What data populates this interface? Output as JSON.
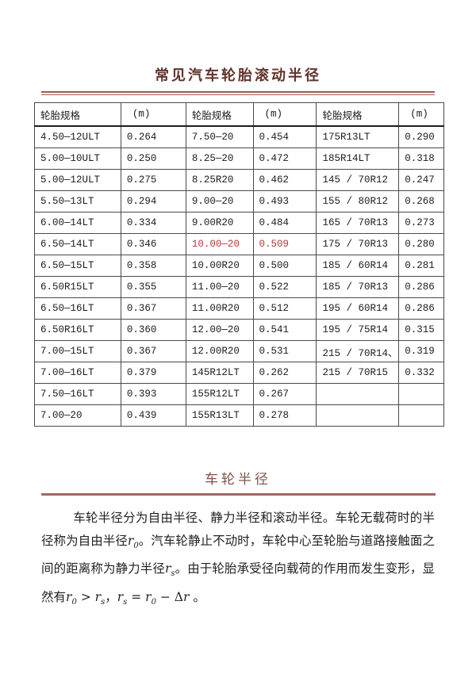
{
  "page": {
    "title": "常见汽车轮胎滚动半径",
    "section_heading": "车轮半径"
  },
  "colors": {
    "title": "#63322c",
    "heading": "#7d544d",
    "title_rule": "#a05a55",
    "section_rule": "#9c6a62",
    "highlight": "#b03a36"
  },
  "table": {
    "headers": [
      "轮胎规格",
      "(m)",
      "轮胎规格",
      "(m)",
      "轮胎规格",
      "(m)"
    ],
    "rows": [
      [
        "4.50—12ULT",
        "0.264",
        "7.50—20",
        "0.454",
        "175R13LT",
        "0.290"
      ],
      [
        "5.00—10ULT",
        "0.250",
        "8.25—20",
        "0.472",
        "185R14LT",
        "0.318"
      ],
      [
        "5.00—12ULT",
        "0.275",
        "8.25R20",
        "0.462",
        "145 / 70R12",
        "0.247"
      ],
      [
        "5.50—13LT",
        "0.294",
        "9.00—20",
        "0.493",
        "155 / 80R12",
        "0.268"
      ],
      [
        "6.00—14LT",
        "0.334",
        "9.00R20",
        "0.484",
        "165 / 70R13",
        "0.273"
      ],
      [
        "6.50—14LT",
        "0.346",
        "10.00—20",
        "0.509",
        "175 / 70R13",
        "0.280"
      ],
      [
        "6.50—15LT",
        "0.358",
        "10.00R20",
        "0.500",
        "185 / 60R14",
        "0.281"
      ],
      [
        "6.50R15LT",
        "0.355",
        "11.00—20",
        "0.522",
        "185 / 70R13",
        "0.286"
      ],
      [
        "6.50—16LT",
        "0.367",
        "11.00R20",
        "0.512",
        "195 / 60R14",
        "0.286"
      ],
      [
        "6.50R16LT",
        "0.360",
        "12.00—20",
        "0.541",
        "195 / 75R14",
        "0.315"
      ],
      [
        "7.00—15LT",
        "0.367",
        "12.00R20",
        "0.531",
        "215 / 70R14、",
        "0.319"
      ],
      [
        "7.00—16LT",
        "0.379",
        "145R12LT",
        "0.262",
        "215 / 70R15",
        "0.332"
      ],
      [
        "7.50—16LT",
        "0.393",
        "155R12LT",
        "0.267",
        "",
        ""
      ],
      [
        "7.00—20",
        "0.439",
        "155R13LT",
        "0.278",
        "",
        ""
      ]
    ],
    "highlight_cells": [
      [
        5,
        2
      ],
      [
        5,
        3
      ]
    ]
  },
  "paragraph": {
    "segments": [
      {
        "t": "text",
        "v": "车轮半径分为自由半径、静力半径和滚动半径。车轮无载荷时的半径称为自由半径"
      },
      {
        "t": "var",
        "base": "r",
        "sub": "0"
      },
      {
        "t": "text",
        "v": "。汽车轮静止不动时，车轮中心至轮胎与道路接触面之间的距离称为静力半径"
      },
      {
        "t": "var",
        "base": "r",
        "sub": "s"
      },
      {
        "t": "text",
        "v": "。由于轮胎承受径向载荷的作用而发生变形，显然有"
      },
      {
        "t": "var",
        "base": "r",
        "sub": "0"
      },
      {
        "t": "text",
        "v": " > "
      },
      {
        "t": "var",
        "base": "r",
        "sub": "s"
      },
      {
        "t": "text",
        "v": "，"
      },
      {
        "t": "var",
        "base": "r",
        "sub": "s"
      },
      {
        "t": "text",
        "v": " = "
      },
      {
        "t": "var",
        "base": "r",
        "sub": "0"
      },
      {
        "t": "text",
        "v": " − Δ"
      },
      {
        "t": "var",
        "base": "r",
        "sub": ""
      },
      {
        "t": "text",
        "v": " 。"
      }
    ]
  }
}
